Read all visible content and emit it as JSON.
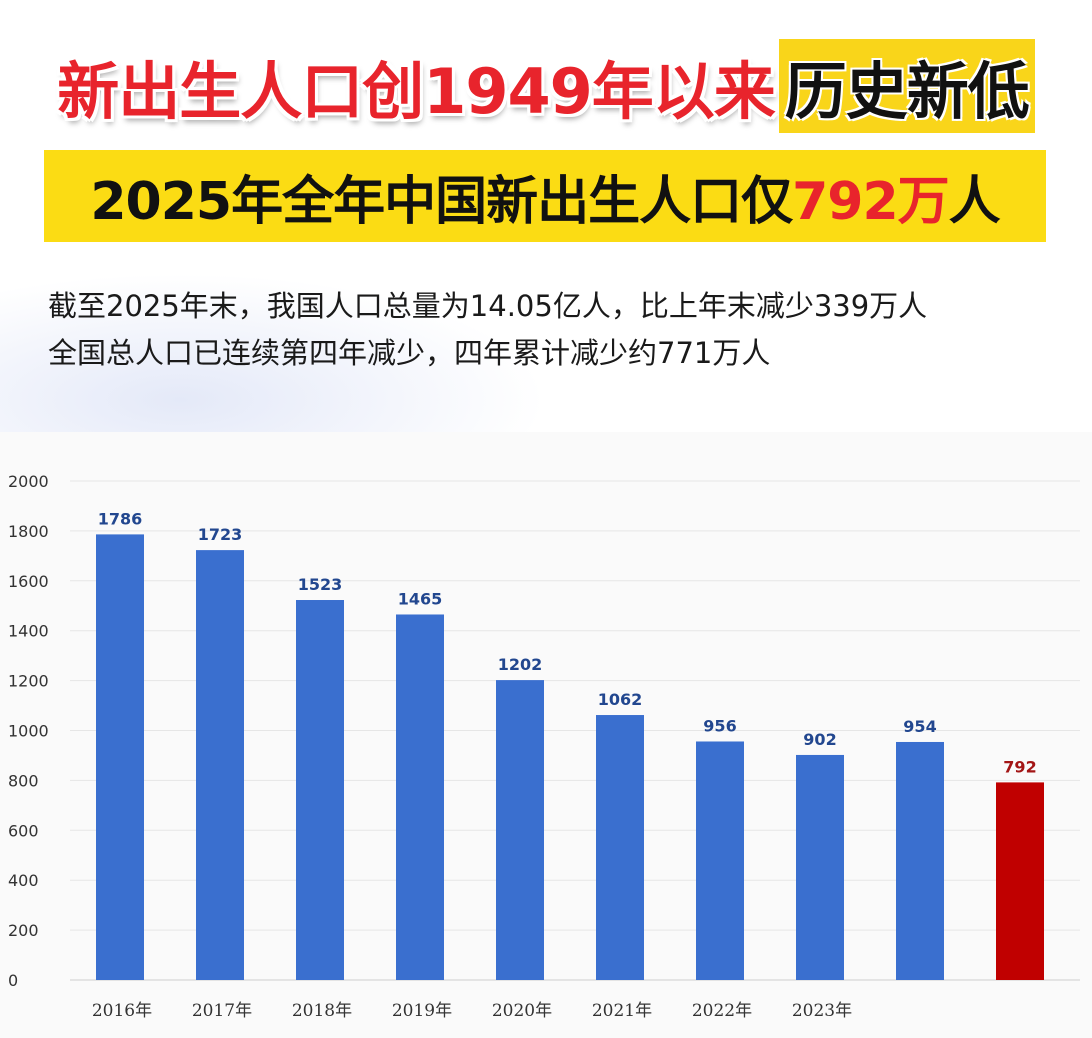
{
  "headline": {
    "part1": "新出生人口创1949年以来",
    "part2": "历史新低"
  },
  "banner": {
    "part1": "2025年全年中国新出生人口仅",
    "highlight": "792万",
    "part2": "人"
  },
  "description": {
    "line1": "截至2025年末，我国人口总量为14.05亿人，比上年末减少339万人",
    "line2": "全国总人口已连续第四年减少，四年累计减少约771万人"
  },
  "colors": {
    "bar": "#3a6fcf",
    "highlight_bar": "#c00000",
    "accent_red": "#e8242c",
    "banner_yellow": "#fbdc14"
  },
  "chart_data": {
    "type": "bar",
    "categories": [
      "2016年",
      "2017年",
      "2018年",
      "2019年",
      "2020年",
      "2021年",
      "2022年",
      "2023年",
      "",
      ""
    ],
    "values": [
      1786,
      1723,
      1523,
      1465,
      1202,
      1062,
      956,
      902,
      954,
      792
    ],
    "highlight_index": 9,
    "ylim": [
      0,
      2000
    ],
    "yticks": [
      0,
      200,
      400,
      600,
      800,
      1000,
      1200,
      1400,
      1600,
      1800,
      2000
    ],
    "grid": true,
    "title": "",
    "xlabel": "",
    "ylabel": ""
  }
}
